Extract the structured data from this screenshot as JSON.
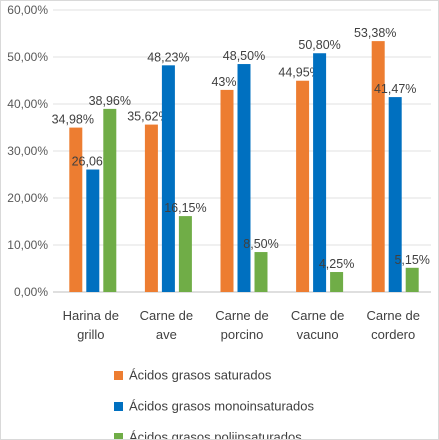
{
  "chart_data": {
    "type": "bar",
    "title": "",
    "xlabel": "",
    "ylabel": "",
    "ylim": [
      0,
      60
    ],
    "yticks": [
      0,
      10,
      20,
      30,
      40,
      50,
      60
    ],
    "ytick_labels": [
      "0,00%",
      "10,00%",
      "20,00%",
      "30,00%",
      "40,00%",
      "50,00%",
      "60,00%"
    ],
    "categories": [
      [
        "Harina de",
        "grillo"
      ],
      [
        "Carne de",
        "ave"
      ],
      [
        "Carne de",
        "porcino"
      ],
      [
        "Carne de",
        "vacuno"
      ],
      [
        "Carne de",
        "cordero"
      ]
    ],
    "grid": true,
    "legend_position": "bottom",
    "series": [
      {
        "name": "Ácidos grasos saturados",
        "color": "#ED7D31",
        "values": [
          34.98,
          35.62,
          43.0,
          44.95,
          53.38
        ],
        "labels": [
          "34,98%",
          "35,62%",
          "43%",
          "44,95%",
          "53,38%"
        ]
      },
      {
        "name": "Ácidos grasos monoinsaturados",
        "color": "#0070C0",
        "values": [
          26.06,
          48.23,
          48.5,
          50.8,
          41.47
        ],
        "labels": [
          "26,06%",
          "48,23%",
          "48,50%",
          "50,80%",
          "41,47%"
        ]
      },
      {
        "name": "Ácidos grasos poliinsaturados",
        "color": "#70AD47",
        "values": [
          38.96,
          16.15,
          8.5,
          4.25,
          5.15
        ],
        "labels": [
          "38,96%",
          "16,15%",
          "8,50%",
          "4,25%",
          "5,15%"
        ]
      }
    ]
  }
}
